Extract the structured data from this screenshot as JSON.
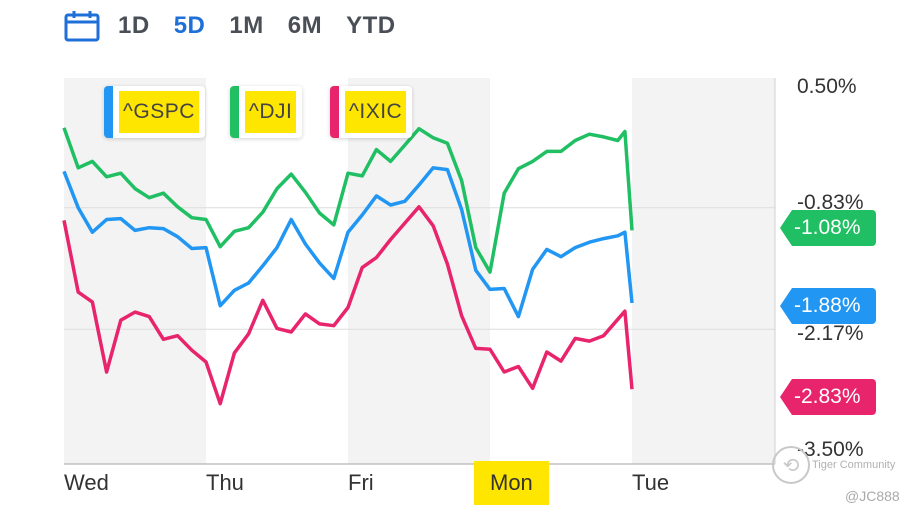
{
  "range_selector": {
    "icon": "calendar-icon",
    "options": [
      "1D",
      "5D",
      "1M",
      "6M",
      "YTD"
    ],
    "active": "5D"
  },
  "colors": {
    "gspc": "#2196f3",
    "dji": "#20bf63",
    "ixic": "#e8246d",
    "active_range": "#1f6fd8",
    "highlight": "#ffe600"
  },
  "chart_data": {
    "type": "line",
    "x_days": [
      "Wed",
      "Thu",
      "Fri",
      "Mon",
      "Tue"
    ],
    "highlighted_day": "Mon",
    "y_ticks": [
      "0.50%",
      "-0.83%",
      "-2.17%",
      "-3.50%"
    ],
    "ylim": [
      -3.5,
      0.5
    ],
    "x_range": [
      0,
      5
    ],
    "legend": [
      "^GSPC",
      "^DJI",
      "^IXIC"
    ],
    "series": [
      {
        "name": "^GSPC",
        "last_label": "-1.88%",
        "last_value": -1.88,
        "x": [
          0.0,
          0.1,
          0.2,
          0.3,
          0.4,
          0.5,
          0.6,
          0.7,
          0.8,
          0.9,
          1.0,
          1.1,
          1.2,
          1.3,
          1.4,
          1.5,
          1.6,
          1.7,
          1.8,
          1.9,
          2.0,
          2.1,
          2.2,
          2.3,
          2.4,
          2.5,
          2.6,
          2.7,
          2.8,
          2.9,
          3.0,
          3.1,
          3.2,
          3.3,
          3.4,
          3.5,
          3.6,
          3.7,
          3.8,
          3.9,
          3.95,
          4.0
        ],
        "y": [
          -0.43,
          -0.83,
          -1.1,
          -0.96,
          -0.95,
          -1.08,
          -1.05,
          -1.06,
          -1.15,
          -1.28,
          -1.27,
          -1.91,
          -1.74,
          -1.66,
          -1.47,
          -1.27,
          -0.96,
          -1.23,
          -1.44,
          -1.61,
          -1.1,
          -0.91,
          -0.7,
          -0.8,
          -0.76,
          -0.58,
          -0.39,
          -0.41,
          -0.85,
          -1.52,
          -1.73,
          -1.72,
          -2.03,
          -1.51,
          -1.29,
          -1.37,
          -1.27,
          -1.21,
          -1.17,
          -1.14,
          -1.1,
          -1.88
        ]
      },
      {
        "name": "^DJI",
        "last_label": "-1.08%",
        "last_value": -1.08,
        "x": [
          0.0,
          0.1,
          0.2,
          0.3,
          0.4,
          0.5,
          0.6,
          0.7,
          0.8,
          0.9,
          1.0,
          1.1,
          1.2,
          1.3,
          1.4,
          1.5,
          1.6,
          1.7,
          1.8,
          1.9,
          2.0,
          2.1,
          2.2,
          2.3,
          2.4,
          2.5,
          2.6,
          2.7,
          2.8,
          2.9,
          3.0,
          3.1,
          3.2,
          3.3,
          3.4,
          3.5,
          3.6,
          3.7,
          3.8,
          3.9,
          3.95,
          4.0
        ],
        "y": [
          0.05,
          -0.39,
          -0.32,
          -0.49,
          -0.45,
          -0.62,
          -0.72,
          -0.67,
          -0.82,
          -0.94,
          -0.96,
          -1.26,
          -1.09,
          -1.05,
          -0.88,
          -0.62,
          -0.46,
          -0.66,
          -0.89,
          -1.02,
          -0.45,
          -0.48,
          -0.19,
          -0.32,
          -0.14,
          0.04,
          -0.06,
          -0.12,
          -0.53,
          -1.27,
          -1.54,
          -0.67,
          -0.4,
          -0.32,
          -0.21,
          -0.21,
          -0.09,
          -0.02,
          -0.05,
          -0.09,
          0.01,
          -1.08
        ]
      },
      {
        "name": "^IXIC",
        "last_label": "-2.83%",
        "last_value": -2.83,
        "x": [
          0.0,
          0.1,
          0.2,
          0.3,
          0.4,
          0.5,
          0.6,
          0.7,
          0.8,
          0.9,
          1.0,
          1.1,
          1.2,
          1.3,
          1.4,
          1.5,
          1.6,
          1.7,
          1.8,
          1.9,
          2.0,
          2.1,
          2.2,
          2.3,
          2.4,
          2.5,
          2.6,
          2.7,
          2.8,
          2.9,
          3.0,
          3.1,
          3.2,
          3.3,
          3.4,
          3.5,
          3.6,
          3.7,
          3.8,
          3.9,
          3.95,
          4.0
        ],
        "y": [
          -0.97,
          -1.76,
          -1.87,
          -2.64,
          -2.07,
          -1.98,
          -2.03,
          -2.28,
          -2.24,
          -2.4,
          -2.53,
          -2.99,
          -2.43,
          -2.22,
          -1.85,
          -2.16,
          -2.2,
          -2.0,
          -2.11,
          -2.13,
          -1.93,
          -1.49,
          -1.38,
          -1.18,
          -1.0,
          -0.82,
          -1.03,
          -1.45,
          -2.02,
          -2.38,
          -2.39,
          -2.64,
          -2.58,
          -2.82,
          -2.42,
          -2.52,
          -2.27,
          -2.3,
          -2.24,
          -2.06,
          -1.97,
          -2.83
        ]
      }
    ]
  },
  "watermark": {
    "text": "Tiger Community",
    "handle": "@JC888"
  }
}
